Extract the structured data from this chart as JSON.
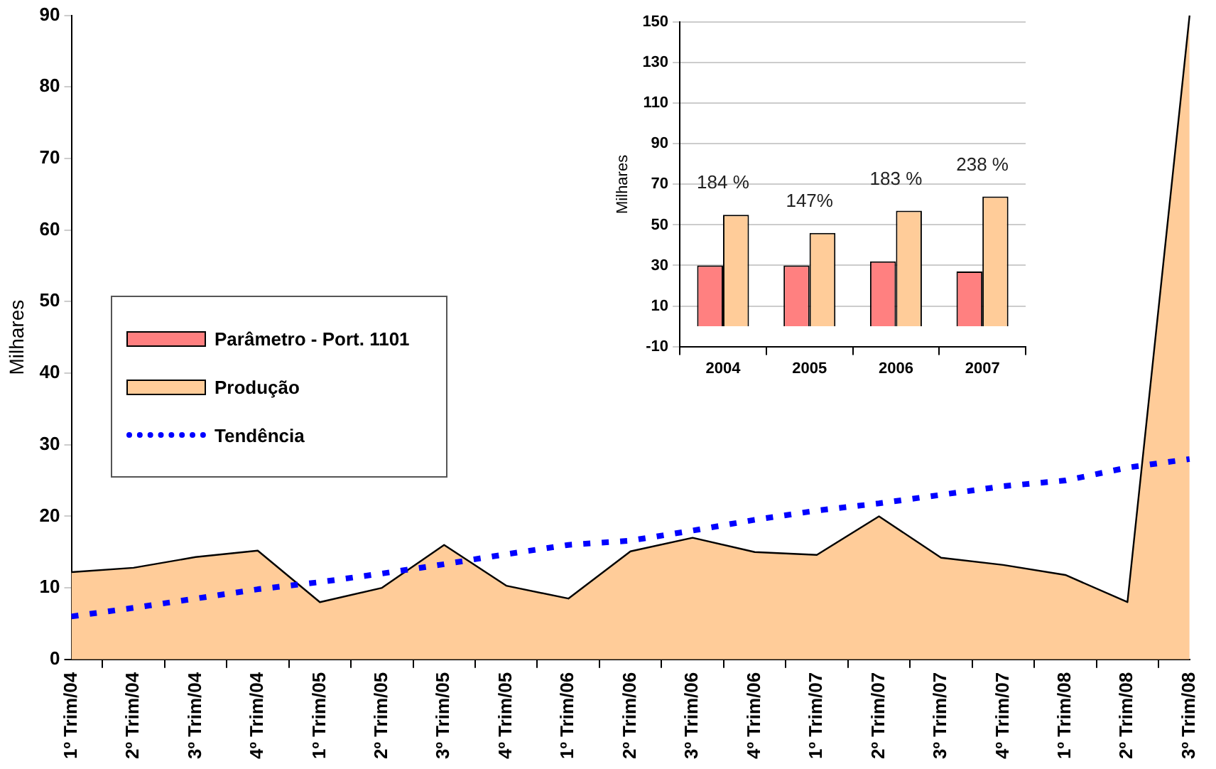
{
  "chart_data": [
    {
      "type": "area",
      "ylabel": "Milhares",
      "categories": [
        "1º Trim/04",
        "2º Trim/04",
        "3º Trim/04",
        "4º Trim/04",
        "1º Trim/05",
        "2º Trim/05",
        "3º Trim/05",
        "4º Trim/05",
        "1º Trim/06",
        "2º Trim/06",
        "3º Trim/06",
        "4º Trim/06",
        "1º Trim/07",
        "2º Trim/07",
        "3º Trim/07",
        "4º Trim/07",
        "1º Trim/08",
        "2º Trim/08",
        "3º Trim/08"
      ],
      "series": [
        {
          "name": "Produção",
          "color": "#ffcc99",
          "values": [
            12.2,
            12.8,
            14.3,
            15.2,
            8,
            10,
            16,
            10.3,
            8.5,
            15.1,
            17,
            15,
            14.6,
            20,
            14.2,
            13.2,
            11.8,
            8,
            90
          ]
        },
        {
          "name": "Tendência",
          "type": "line",
          "color": "#0000ff",
          "line_style": "dotted",
          "values": [
            6,
            7.2,
            8.5,
            9.8,
            10.8,
            12,
            13.3,
            14.7,
            16,
            16.6,
            18,
            19.5,
            20.8,
            21.8,
            23,
            24.2,
            25,
            26.8,
            28
          ]
        }
      ],
      "ylim": [
        0,
        90
      ],
      "yticks": [
        0,
        10,
        20,
        30,
        40,
        50,
        60,
        70,
        80,
        90
      ],
      "grid": false,
      "legend": "left",
      "marker": "none"
    },
    {
      "type": "bar",
      "ylabel": "Milhares",
      "categories": [
        "2004",
        "2005",
        "2006",
        "2007"
      ],
      "series": [
        {
          "name": "Parâmetro - Port. 1101",
          "color": "#ff8080",
          "values": [
            30,
            30,
            32,
            27
          ]
        },
        {
          "color": "#ffcc99",
          "values": [
            55,
            46,
            57,
            64
          ]
        }
      ],
      "ylim": [
        -10,
        150
      ],
      "yticks": [
        -10,
        10,
        30,
        50,
        70,
        90,
        110,
        130,
        150
      ],
      "grid": "y",
      "annotations": [
        "184 %",
        "147%",
        "183 %",
        "238 %"
      ]
    }
  ]
}
